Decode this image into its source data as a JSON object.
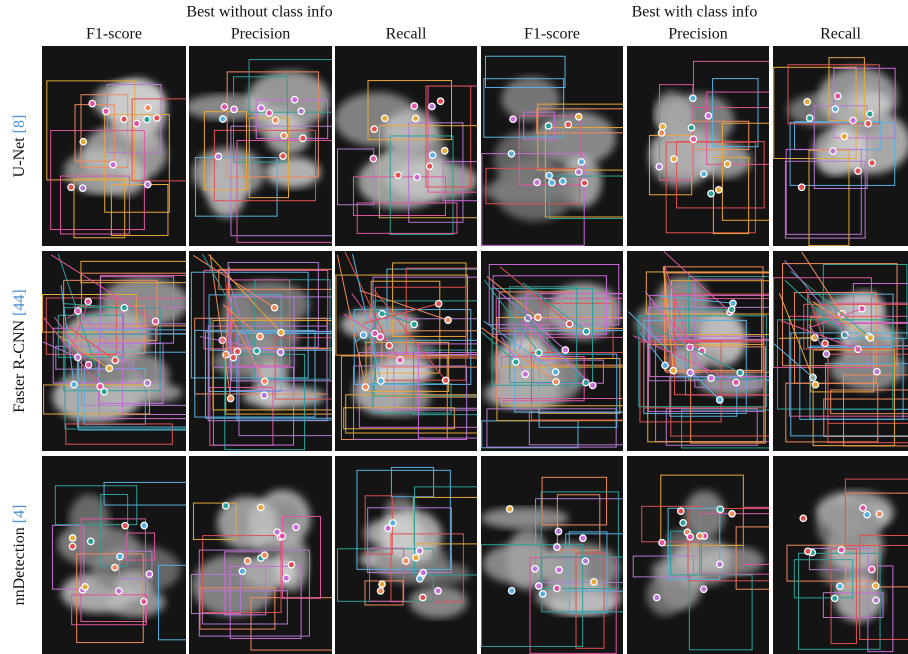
{
  "header": {
    "groups": [
      {
        "title": "Best without class info",
        "columns": [
          "F1-score",
          "Precision",
          "Recall"
        ]
      },
      {
        "title": "Best with class info",
        "columns": [
          "F1-score",
          "Precision",
          "Recall"
        ]
      }
    ]
  },
  "rows": [
    {
      "label": "U-Net",
      "reference": "[8]"
    },
    {
      "label": "Faster R-CNN",
      "reference": "[44]"
    },
    {
      "label": "nnDetection",
      "reference": "[4]"
    }
  ]
}
